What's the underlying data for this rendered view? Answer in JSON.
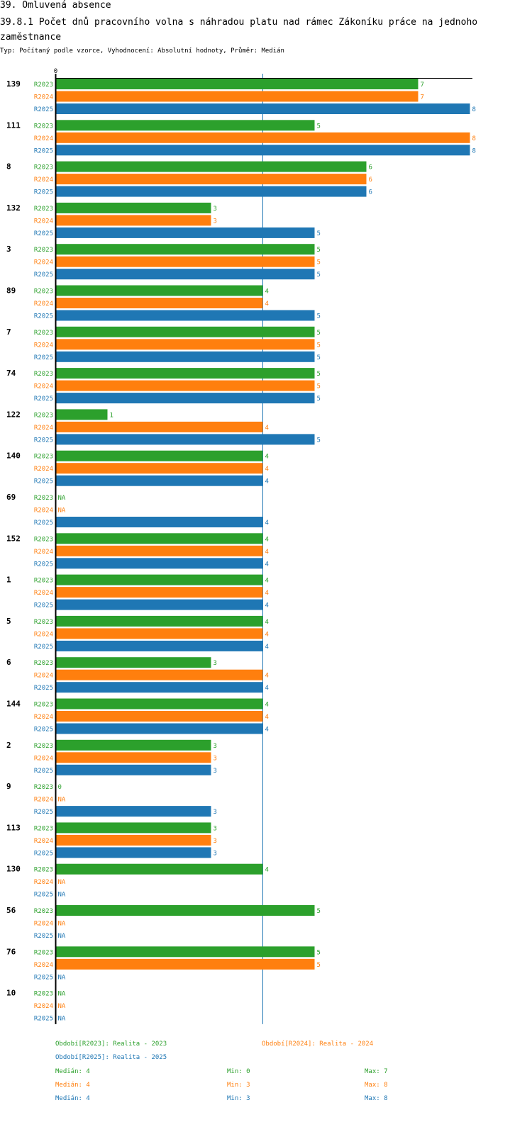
{
  "header": {
    "section": "39. Omluvená absence",
    "title": "39.8.1 Počet dnů pracovního volna s náhradou platu nad rámec Zákoníku práce na jednoho zaměstnance",
    "subtitle": "Typ: Počítaný podle vzorce, Vyhodnocení: Absolutní hodnoty, Průměr: Medián"
  },
  "chart_data": {
    "type": "bar",
    "orientation": "horizontal",
    "axis_origin_label": "0",
    "x_min": 0,
    "x_max": 8,
    "reference_line": 4,
    "na_label": "NA",
    "categories": [
      "139",
      "111",
      "8",
      "132",
      "3",
      "89",
      "7",
      "74",
      "122",
      "140",
      "69",
      "152",
      "1",
      "5",
      "6",
      "144",
      "2",
      "9",
      "113",
      "130",
      "56",
      "76",
      "10"
    ],
    "series": [
      {
        "name": "R2023",
        "color": "#2ca02c",
        "values": [
          7,
          5,
          6,
          3,
          5,
          4,
          5,
          5,
          1,
          4,
          null,
          4,
          4,
          4,
          3,
          4,
          3,
          0,
          3,
          4,
          5,
          5,
          null
        ]
      },
      {
        "name": "R2024",
        "color": "#ff7f0e",
        "values": [
          7,
          8,
          6,
          3,
          5,
          4,
          5,
          5,
          4,
          4,
          null,
          4,
          4,
          4,
          4,
          4,
          3,
          null,
          3,
          null,
          null,
          5,
          null
        ]
      },
      {
        "name": "R2025",
        "color": "#1f77b4",
        "values": [
          8,
          8,
          6,
          5,
          5,
          5,
          5,
          5,
          5,
          4,
          4,
          4,
          4,
          4,
          4,
          4,
          3,
          3,
          3,
          null,
          null,
          null,
          null
        ]
      }
    ],
    "reference_line_color": "#1f77b4"
  },
  "legend": {
    "r2023": "Období[R2023]: Realita - 2023",
    "r2024": "Období[R2024]: Realita - 2024",
    "r2025": "Období[R2025]: Realita - 2025"
  },
  "stats": {
    "r2023": {
      "median": "Medián: 4",
      "min": "Min: 0",
      "max": "Max: 7",
      "color": "#2ca02c"
    },
    "r2024": {
      "median": "Medián: 4",
      "min": "Min: 3",
      "max": "Max: 8",
      "color": "#ff7f0e"
    },
    "r2025": {
      "median": "Medián: 4",
      "min": "Min: 3",
      "max": "Max: 8",
      "color": "#1f77b4"
    }
  }
}
